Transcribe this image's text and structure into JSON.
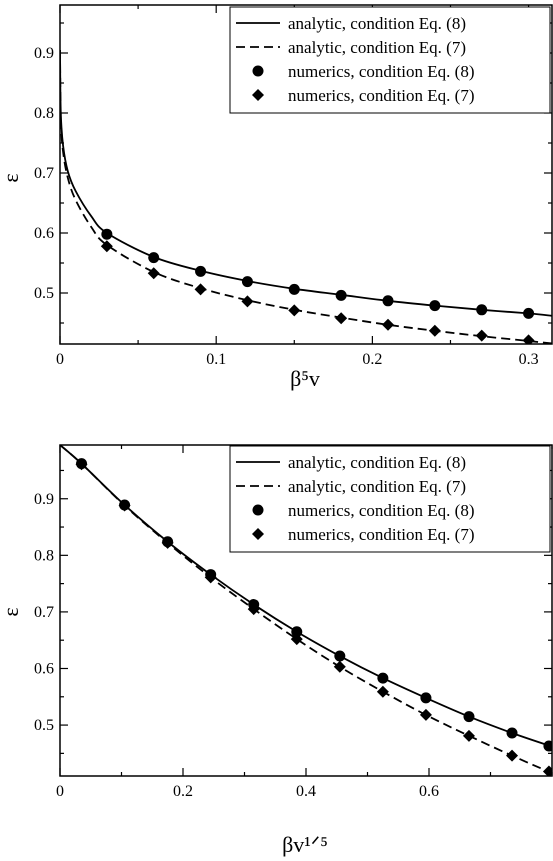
{
  "chart_data": [
    {
      "type": "line",
      "xlabel": "β⁵v",
      "ylabel": "ε",
      "xlim": [
        0,
        0.315
      ],
      "ylim": [
        0.415,
        0.98
      ],
      "xticks": [
        0,
        0.1,
        0.2,
        0.3
      ],
      "xtick_labels": [
        "0",
        "0.1",
        "0.2",
        "0.3"
      ],
      "yticks": [
        0.5,
        0.6,
        0.7,
        0.8,
        0.9
      ],
      "ytick_labels": [
        "0.5",
        "0.6",
        "0.7",
        "0.8",
        "0.9"
      ],
      "grid": false,
      "legend_position": "top-right",
      "series": [
        {
          "name": "analytic, condition Eq. (8)",
          "style": "solid",
          "x": [
            0.0,
            0.0005,
            0.002,
            0.005,
            0.01,
            0.02,
            0.03,
            0.06,
            0.09,
            0.12,
            0.15,
            0.18,
            0.21,
            0.24,
            0.27,
            0.3,
            0.315
          ],
          "y": [
            0.905,
            0.8,
            0.745,
            0.703,
            0.67,
            0.628,
            0.6,
            0.56,
            0.537,
            0.52,
            0.507,
            0.497,
            0.487,
            0.479,
            0.472,
            0.466,
            0.462
          ]
        },
        {
          "name": "analytic, condition Eq. (7)",
          "style": "dashed",
          "x": [
            0.0,
            0.0005,
            0.002,
            0.005,
            0.01,
            0.02,
            0.03,
            0.06,
            0.09,
            0.12,
            0.15,
            0.18,
            0.21,
            0.24,
            0.27,
            0.3,
            0.315
          ],
          "y": [
            0.905,
            0.79,
            0.735,
            0.692,
            0.655,
            0.61,
            0.58,
            0.535,
            0.508,
            0.488,
            0.472,
            0.459,
            0.447,
            0.437,
            0.428,
            0.42,
            0.416
          ]
        },
        {
          "name": "numerics, condition Eq. (8)",
          "marker": "circle",
          "x": [
            0.03,
            0.06,
            0.09,
            0.12,
            0.15,
            0.18,
            0.21,
            0.24,
            0.27,
            0.3
          ],
          "y": [
            0.598,
            0.559,
            0.536,
            0.519,
            0.506,
            0.496,
            0.487,
            0.479,
            0.472,
            0.466
          ]
        },
        {
          "name": "numerics, condition Eq. (7)",
          "marker": "diamond",
          "x": [
            0.03,
            0.06,
            0.09,
            0.12,
            0.15,
            0.18,
            0.21,
            0.24,
            0.27,
            0.3
          ],
          "y": [
            0.578,
            0.533,
            0.506,
            0.486,
            0.471,
            0.458,
            0.447,
            0.437,
            0.429,
            0.421
          ]
        }
      ]
    },
    {
      "type": "line",
      "xlabel": "βv¹ᐟ⁵",
      "ylabel": "ε",
      "xlim": [
        0,
        0.8
      ],
      "ylim": [
        0.41,
        0.995
      ],
      "xticks": [
        0,
        0.2,
        0.4,
        0.6
      ],
      "xtick_labels": [
        "0",
        "0.2",
        "0.4",
        "0.6"
      ],
      "yticks": [
        0.5,
        0.6,
        0.7,
        0.8,
        0.9
      ],
      "ytick_labels": [
        "0.5",
        "0.6",
        "0.7",
        "0.8",
        "0.9"
      ],
      "grid": false,
      "legend_position": "top-right",
      "series": [
        {
          "name": "analytic, condition Eq. (8)",
          "style": "solid",
          "x": [
            0.0,
            0.035,
            0.105,
            0.175,
            0.245,
            0.315,
            0.385,
            0.455,
            0.525,
            0.595,
            0.665,
            0.735,
            0.8
          ],
          "y": [
            0.995,
            0.962,
            0.889,
            0.824,
            0.766,
            0.713,
            0.665,
            0.622,
            0.583,
            0.548,
            0.515,
            0.486,
            0.462
          ]
        },
        {
          "name": "analytic, condition Eq. (7)",
          "style": "dashed",
          "x": [
            0.0,
            0.035,
            0.105,
            0.175,
            0.245,
            0.315,
            0.385,
            0.455,
            0.525,
            0.595,
            0.665,
            0.735,
            0.8
          ],
          "y": [
            0.995,
            0.962,
            0.888,
            0.822,
            0.761,
            0.705,
            0.652,
            0.603,
            0.559,
            0.518,
            0.481,
            0.446,
            0.415
          ]
        },
        {
          "name": "numerics, condition Eq. (8)",
          "marker": "circle",
          "x": [
            0.035,
            0.105,
            0.175,
            0.245,
            0.315,
            0.385,
            0.455,
            0.525,
            0.595,
            0.665,
            0.735,
            0.795
          ],
          "y": [
            0.962,
            0.889,
            0.824,
            0.766,
            0.713,
            0.665,
            0.622,
            0.583,
            0.548,
            0.515,
            0.486,
            0.463
          ]
        },
        {
          "name": "numerics, condition Eq. (7)",
          "marker": "diamond",
          "x": [
            0.035,
            0.105,
            0.175,
            0.245,
            0.315,
            0.385,
            0.455,
            0.525,
            0.595,
            0.665,
            0.735,
            0.795
          ],
          "y": [
            0.961,
            0.888,
            0.822,
            0.761,
            0.705,
            0.652,
            0.603,
            0.559,
            0.518,
            0.481,
            0.446,
            0.418
          ]
        }
      ]
    }
  ]
}
